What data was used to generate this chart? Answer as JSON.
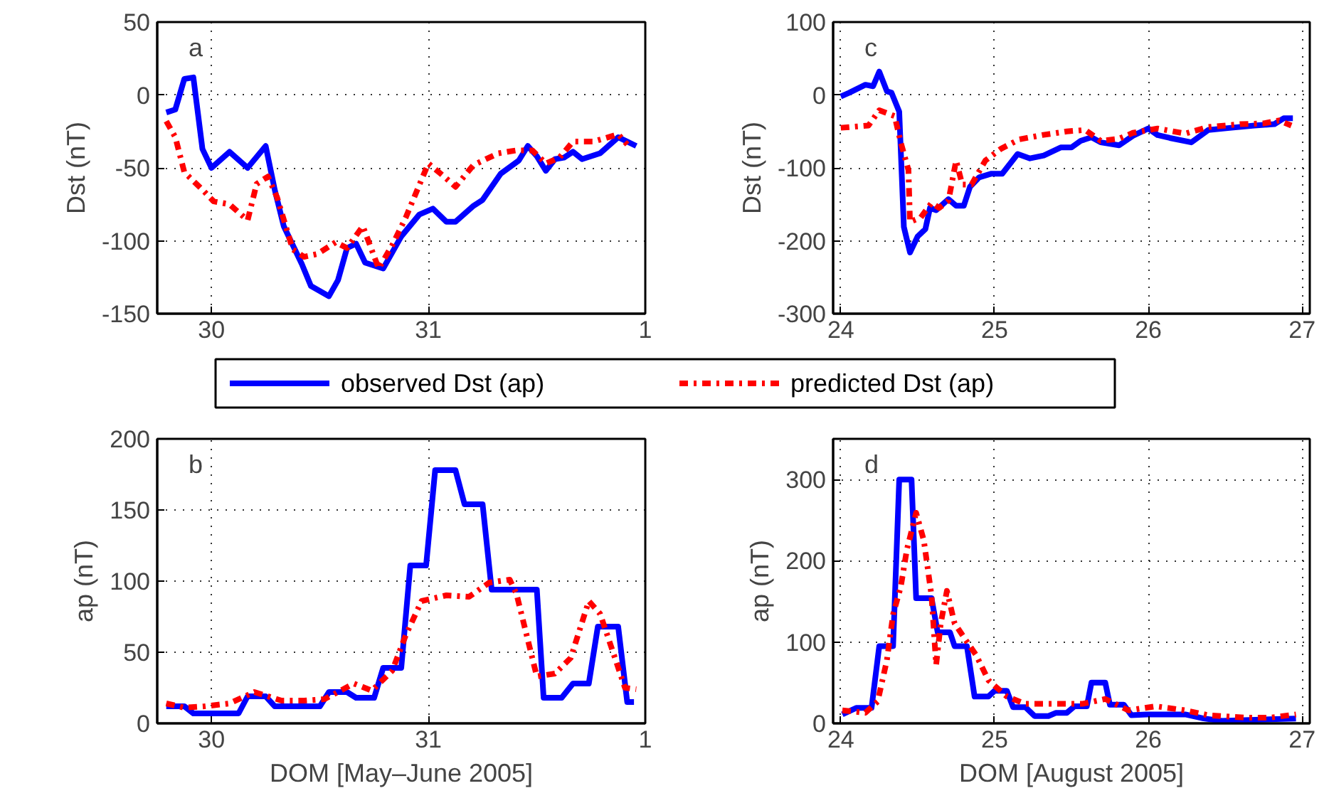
{
  "chart_data": [
    {
      "type": "line",
      "annotations": [
        "a"
      ],
      "ylabel": "Dst (nT)",
      "xlim": [
        "2005-05-29T18:00",
        "2005-06-01T00:00"
      ],
      "xticks": [
        {
          "value": "2005-05-30",
          "label": "30"
        },
        {
          "value": "2005-05-31",
          "label": "31"
        },
        {
          "value": "2005-06-01",
          "label": "1"
        }
      ],
      "ylim": [
        -150,
        50
      ],
      "yticks": [
        -150,
        -100,
        -50,
        0,
        50
      ],
      "grid": true,
      "legend": "bottom",
      "series": [
        {
          "name": "observed Dst (ap)",
          "color": "#0000ff",
          "line_style": "solid",
          "x": [
            "2005-05-29T19:00",
            "2005-05-29T20:00",
            "2005-05-29T21:00",
            "2005-05-29T22:00",
            "2005-05-29T23:00",
            "2005-05-30T00:00",
            "2005-05-30T02:00",
            "2005-05-30T04:00",
            "2005-05-30T06:00",
            "2005-05-30T07:00",
            "2005-05-30T08:00",
            "2005-05-30T10:00",
            "2005-05-30T11:00",
            "2005-05-30T13:00",
            "2005-05-30T14:00",
            "2005-05-30T15:00",
            "2005-05-30T16:00",
            "2005-05-30T17:00",
            "2005-05-30T19:00",
            "2005-05-30T21:00",
            "2005-05-30T23:00",
            "2005-05-31T00:30",
            "2005-05-31T02:00",
            "2005-05-31T03:00",
            "2005-05-31T05:00",
            "2005-05-31T06:00",
            "2005-05-31T08:00",
            "2005-05-31T10:00",
            "2005-05-31T11:00",
            "2005-05-31T12:00",
            "2005-05-31T13:00",
            "2005-05-31T14:00",
            "2005-05-31T15:00",
            "2005-05-31T16:00",
            "2005-05-31T17:00",
            "2005-05-31T19:00",
            "2005-05-31T21:00",
            "2005-05-31T23:00"
          ],
          "values": [
            -12,
            -10,
            11,
            12,
            -37,
            -50,
            -39,
            -50,
            -35,
            -65,
            -90,
            -116,
            -131,
            -138,
            -127,
            -105,
            -102,
            -115,
            -119,
            -97,
            -82,
            -78,
            -87,
            -87,
            -76,
            -72,
            -54,
            -45,
            -35,
            -42,
            -52,
            -44,
            -43,
            -39,
            -44,
            -40,
            -29,
            -35
          ]
        },
        {
          "name": "predicted Dst (ap)",
          "color": "#ff0000",
          "line_style": "dashdot",
          "x": [
            "2005-05-29T19:00",
            "2005-05-29T20:00",
            "2005-05-29T21:00",
            "2005-05-29T23:00",
            "2005-05-30T00:15",
            "2005-05-30T02:00",
            "2005-05-30T04:00",
            "2005-05-30T05:00",
            "2005-05-30T06:15",
            "2005-05-30T07:15",
            "2005-05-30T09:00",
            "2005-05-30T10:15",
            "2005-05-30T11:45",
            "2005-05-30T13:45",
            "2005-05-30T15:00",
            "2005-05-30T16:45",
            "2005-05-30T18:30",
            "2005-05-30T20:00",
            "2005-05-30T21:30",
            "2005-05-30T23:15",
            "2005-05-31T00:00",
            "2005-05-31T01:45",
            "2005-05-31T03:00",
            "2005-05-31T05:00",
            "2005-05-31T07:45",
            "2005-05-31T09:45",
            "2005-05-31T11:30",
            "2005-05-31T13:00",
            "2005-05-31T14:30",
            "2005-05-31T16:00",
            "2005-05-31T18:15",
            "2005-05-31T21:00",
            "2005-05-31T22:00"
          ],
          "values": [
            -18,
            -29,
            -53,
            -65,
            -73,
            -75,
            -86,
            -61,
            -56,
            -70,
            -106,
            -111,
            -109,
            -101,
            -105,
            -90,
            -119,
            -103,
            -84,
            -58,
            -47,
            -56,
            -63,
            -48,
            -40,
            -38,
            -38,
            -47,
            -43,
            -32,
            -32,
            -27,
            -34
          ]
        }
      ]
    },
    {
      "type": "line",
      "annotations": [
        "c"
      ],
      "ylabel": "Dst (nT)",
      "xlim": [
        23.95,
        27.05
      ],
      "xticks": [
        24,
        25,
        26,
        27
      ],
      "ylim": [
        -300,
        100
      ],
      "yticks": [
        -300,
        -200,
        -100,
        0,
        100
      ],
      "grid": true,
      "series": [
        {
          "color": "#0000ff",
          "line_style": "solid",
          "x": [
            24.0,
            24.055,
            24.16,
            24.21,
            24.25,
            24.3,
            24.33,
            24.38,
            24.41,
            24.45,
            24.5,
            24.55,
            24.58,
            24.62,
            24.7,
            24.75,
            24.8,
            24.84,
            24.9,
            24.98,
            25.05,
            25.15,
            25.23,
            25.32,
            25.43,
            25.5,
            25.56,
            25.63,
            25.69,
            25.81,
            25.9,
            26.0,
            26.06,
            26.14,
            26.28,
            26.39,
            26.54,
            26.69,
            26.82,
            26.88,
            26.94
          ],
          "values": [
            -2,
            3,
            14,
            12,
            32,
            5,
            3,
            -23,
            -181,
            -216,
            -194,
            -184,
            -155,
            -158,
            -143,
            -152,
            -152,
            -126,
            -113,
            -108,
            -108,
            -81,
            -87,
            -83,
            -72,
            -72,
            -63,
            -58,
            -65,
            -69,
            -56,
            -46,
            -55,
            -59,
            -65,
            -48,
            -45,
            -42,
            -40,
            -32,
            -32
          ]
        },
        {
          "color": "#ff0000",
          "line_style": "dashdot",
          "x": [
            24.0,
            24.18,
            24.25,
            24.35,
            24.39,
            24.44,
            24.45,
            24.52,
            24.59,
            24.64,
            24.7,
            24.75,
            24.79,
            24.85,
            24.94,
            25.04,
            25.16,
            25.31,
            25.47,
            25.59,
            25.69,
            25.81,
            25.9,
            26.06,
            26.24,
            26.39,
            26.6,
            26.75,
            26.85,
            26.93
          ],
          "values": [
            -45,
            -42,
            -21,
            -29,
            -65,
            -103,
            -174,
            -168,
            -148,
            -155,
            -145,
            -90,
            -123,
            -123,
            -90,
            -74,
            -61,
            -55,
            -50,
            -48,
            -63,
            -60,
            -52,
            -46,
            -53,
            -44,
            -40,
            -39,
            -35,
            -42
          ]
        }
      ]
    },
    {
      "type": "line",
      "annotations": [
        "b"
      ],
      "xlabel": "DOM [May–June 2005]",
      "ylabel": "ap (nT)",
      "xlim": [
        "2005-05-29T18:00",
        "2005-06-01T00:00"
      ],
      "xticks": [
        {
          "value": "2005-05-30",
          "label": "30"
        },
        {
          "value": "2005-05-31",
          "label": "31"
        },
        {
          "value": "2005-06-01",
          "label": "1"
        }
      ],
      "ylim": [
        0,
        200
      ],
      "yticks": [
        0,
        50,
        100,
        150,
        200
      ],
      "grid": true,
      "series": [
        {
          "color": "#0000ff",
          "line_style": "solid",
          "x": [
            "2005-05-29T19:00",
            "2005-05-29T21:00",
            "2005-05-29T22:00",
            "2005-05-30T03:00",
            "2005-05-30T04:00",
            "2005-05-30T06:00",
            "2005-05-30T07:00",
            "2005-05-30T12:00",
            "2005-05-30T13:00",
            "2005-05-30T15:00",
            "2005-05-30T16:00",
            "2005-05-30T18:00",
            "2005-05-30T19:00",
            "2005-05-30T21:00",
            "2005-05-30T22:00",
            "2005-05-30T23:45",
            "2005-05-31T00:45",
            "2005-05-31T03:00",
            "2005-05-31T04:00",
            "2005-05-31T06:00",
            "2005-05-31T07:00",
            "2005-05-31T12:00",
            "2005-05-31T12:45",
            "2005-05-31T14:45",
            "2005-05-31T16:00",
            "2005-05-31T17:45",
            "2005-05-31T18:45",
            "2005-05-31T21:00",
            "2005-05-31T22:00",
            "2005-05-31T22:45"
          ],
          "values": [
            12,
            12,
            7,
            7,
            19,
            19,
            12,
            12,
            22,
            22,
            18,
            18,
            39,
            39,
            111,
            111,
            178,
            178,
            154,
            154,
            94,
            94,
            18,
            18,
            28,
            28,
            68,
            68,
            15,
            15
          ]
        },
        {
          "color": "#ff0000",
          "line_style": "dashdot",
          "x": [
            "2005-05-29T19:00",
            "2005-05-29T21:00",
            "2005-05-29T23:15",
            "2005-05-30T02:00",
            "2005-05-30T04:45",
            "2005-05-30T07:45",
            "2005-05-30T10:15",
            "2005-05-30T12:30",
            "2005-05-30T15:45",
            "2005-05-30T17:45",
            "2005-05-30T20:00",
            "2005-05-30T21:30",
            "2005-05-30T23:15",
            "2005-05-31T02:00",
            "2005-05-31T04:30",
            "2005-05-31T06:45",
            "2005-05-31T09:00",
            "2005-05-31T09:45",
            "2005-05-31T12:00",
            "2005-05-31T14:00",
            "2005-05-31T15:45",
            "2005-05-31T17:45",
            "2005-05-31T19:00",
            "2005-05-31T20:45",
            "2005-05-31T21:45",
            "2005-05-31T23:00"
          ],
          "values": [
            14,
            11,
            12,
            14,
            22,
            16,
            16,
            17,
            28,
            23,
            37,
            62,
            86,
            90,
            89,
            99,
            101,
            91,
            33,
            35,
            46,
            86,
            77,
            44,
            25,
            24
          ]
        }
      ]
    },
    {
      "type": "line",
      "annotations": [
        "d"
      ],
      "xlabel": "DOM [August 2005]",
      "ylabel": "ap (nT)",
      "xlim": [
        23.95,
        27.05
      ],
      "xticks": [
        24,
        25,
        26,
        27
      ],
      "ylim": [
        0,
        350
      ],
      "yticks": [
        0,
        100,
        200,
        300
      ],
      "grid": true,
      "series": [
        {
          "color": "#0000ff",
          "line_style": "solid",
          "x": [
            24.01,
            24.1,
            24.2,
            24.25,
            24.34,
            24.38,
            24.46,
            24.49,
            24.59,
            24.63,
            24.71,
            24.74,
            24.82,
            24.87,
            24.96,
            25.0,
            25.08,
            25.12,
            25.2,
            25.26,
            25.35,
            25.4,
            25.47,
            25.52,
            25.6,
            25.63,
            25.72,
            25.75,
            25.84,
            25.89,
            25.99,
            26.24,
            26.36,
            26.48,
            26.79,
            26.96
          ],
          "values": [
            11,
            19,
            19,
            95,
            95,
            300,
            300,
            154,
            154,
            112,
            112,
            95,
            95,
            33,
            33,
            40,
            40,
            20,
            20,
            9,
            9,
            13,
            13,
            21,
            21,
            50,
            50,
            23,
            23,
            10,
            11,
            11,
            6,
            3,
            5,
            6
          ]
        },
        {
          "color": "#ff0000",
          "line_style": "dashdot",
          "x": [
            24.01,
            24.16,
            24.24,
            24.3,
            24.34,
            24.39,
            24.43,
            24.49,
            24.54,
            24.59,
            24.62,
            24.65,
            24.69,
            24.74,
            24.8,
            24.88,
            24.96,
            25.08,
            25.2,
            25.38,
            25.57,
            25.72,
            25.87,
            26.05,
            26.24,
            26.39,
            26.64,
            26.79,
            26.96
          ],
          "values": [
            16,
            13,
            27,
            78,
            134,
            168,
            214,
            259,
            225,
            157,
            72,
            123,
            163,
            123,
            106,
            84,
            53,
            33,
            24,
            24,
            24,
            30,
            16,
            21,
            16,
            10,
            7,
            7,
            11
          ]
        }
      ]
    }
  ]
}
